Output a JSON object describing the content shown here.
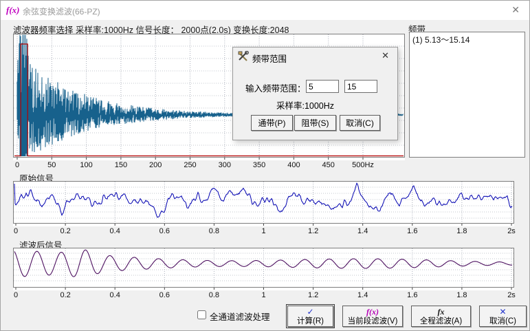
{
  "window": {
    "icon": "f(x)",
    "title": "余弦变换滤波(66-PZ)",
    "close": "✕"
  },
  "header": {
    "info": "滤波器频率选择 采样率:1000Hz 信号长度： 2000点(2.0s) 变换长度:2048"
  },
  "band_panel": {
    "label": "频带",
    "items": [
      "(1) 5.13～15.14"
    ]
  },
  "dialog": {
    "title": "频带范围",
    "close": "✕",
    "input_label": "输入频带范围：",
    "low": "5",
    "high": "15",
    "samplerate": "采样率:1000Hz",
    "pass_btn": "通带(P)",
    "stop_btn": "阻带(S)",
    "cancel_btn": "取消(C)"
  },
  "signals": {
    "original_label": "原始信号",
    "filtered_label": "滤波后信号"
  },
  "footer": {
    "checkbox_label": "全通道滤波处理",
    "buttons": [
      {
        "label": "计算(R)",
        "icon": "✓"
      },
      {
        "label": "当前段滤波(V)",
        "icon": "f(x)"
      },
      {
        "label": "全程滤波(A)",
        "icon": "fx"
      },
      {
        "label": "取消(C)",
        "icon": "✕"
      }
    ]
  },
  "chart_data": [
    {
      "id": "spectrum",
      "type": "line",
      "title": "滤波器频率选择 (频谱)",
      "x_unit": "Hz",
      "xlim": [
        0,
        500
      ],
      "x_ticks": [
        "0",
        "50",
        "100",
        "150",
        "200",
        "250",
        "300",
        "350",
        "400",
        "450",
        "500Hz"
      ],
      "passband_hz": [
        5.13,
        15.14
      ],
      "line_color": "#17618c",
      "band_color": "#b40000",
      "grid": true,
      "description": "Noisy magnitude spectrum oscillating about a center line; dominant energy burst at 5-15 Hz reaching full scale, amplitude decaying exponentially to a flat line by ~400 Hz. Red overlay marks selected passband 5.13-15.14 Hz as a rectangle rising from the zero line."
    },
    {
      "id": "original",
      "type": "line",
      "title": "原始信号",
      "x_unit": "s",
      "xlim": [
        0,
        2
      ],
      "x_ticks": [
        "0",
        "0.2",
        "0.4",
        "0.6",
        "0.8",
        "1",
        "1.2",
        "1.4",
        "1.6",
        "1.8",
        "2s"
      ],
      "line_color": "#0000b0",
      "grid": true,
      "description": "Broadband noisy time signal, 2000 samples over 2 s; strong low-frequency swings near t=0-0.35 s (deep dip ~0.32 s), then moderate random fluctuation around the mean."
    },
    {
      "id": "filtered",
      "type": "line",
      "title": "滤波后信号",
      "x_unit": "s",
      "xlim": [
        0,
        2
      ],
      "x_ticks": [
        "0",
        "0.2",
        "0.4",
        "0.6",
        "0.8",
        "1",
        "1.2",
        "1.4",
        "1.6",
        "1.8",
        "2s"
      ],
      "line_color": "#4d1060",
      "grid": true,
      "dominant_freq_hz": 10,
      "description": "Smooth band-passed (5-15 Hz) sinusoid ~10 Hz; amplitude largest for t<0.4 s (peak near 0.27 s), decaying to small steady ripples for t>0.6 s."
    }
  ]
}
